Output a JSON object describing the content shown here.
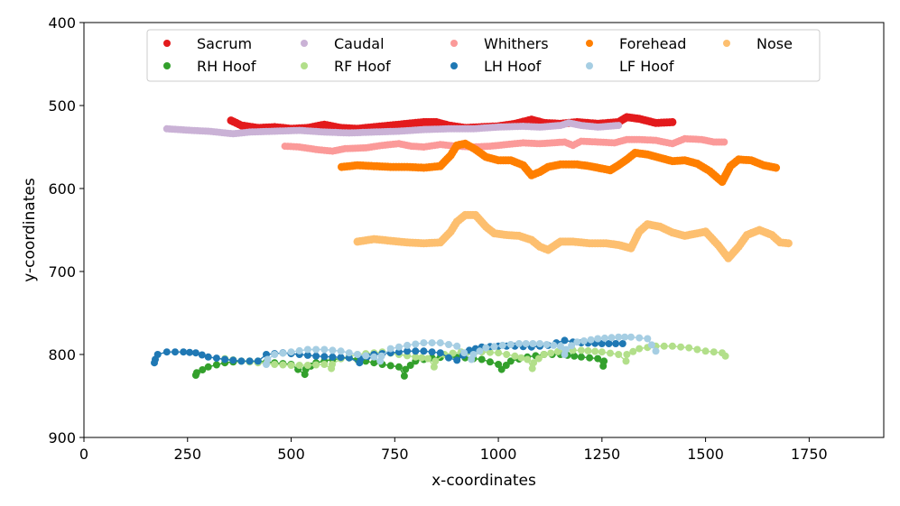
{
  "chart_data": {
    "type": "scatter",
    "title": "",
    "xlabel": "x-coordinates",
    "ylabel": "y-coordinates",
    "xlim": [
      0,
      1930
    ],
    "ylim": [
      900,
      400
    ],
    "y_inverted": true,
    "grid": false,
    "legend_position": "top-center",
    "xticks": [
      0,
      250,
      500,
      750,
      1000,
      1250,
      1500,
      1750
    ],
    "yticks": [
      400,
      500,
      600,
      700,
      800,
      900
    ],
    "series": [
      {
        "name": "Sacrum",
        "color": "#e31a1c",
        "marker_size": 4.5,
        "points": [
          [
            355,
            518
          ],
          [
            380,
            524
          ],
          [
            420,
            527
          ],
          [
            460,
            526
          ],
          [
            500,
            528
          ],
          [
            540,
            527
          ],
          [
            580,
            523
          ],
          [
            620,
            527
          ],
          [
            660,
            528
          ],
          [
            700,
            526
          ],
          [
            740,
            524
          ],
          [
            780,
            522
          ],
          [
            820,
            520
          ],
          [
            850,
            520
          ],
          [
            880,
            524
          ],
          [
            920,
            527
          ],
          [
            960,
            526
          ],
          [
            1000,
            525
          ],
          [
            1040,
            522
          ],
          [
            1080,
            517
          ],
          [
            1110,
            521
          ],
          [
            1150,
            522
          ],
          [
            1190,
            520
          ],
          [
            1240,
            522
          ],
          [
            1290,
            520
          ],
          [
            1310,
            514
          ],
          [
            1340,
            516
          ],
          [
            1380,
            521
          ],
          [
            1420,
            520
          ]
        ]
      },
      {
        "name": "Caudal",
        "color": "#cab2d6",
        "marker_size": 4,
        "points": [
          [
            200,
            528
          ],
          [
            260,
            530
          ],
          [
            300,
            531
          ],
          [
            360,
            534
          ],
          [
            400,
            532
          ],
          [
            460,
            531
          ],
          [
            520,
            530
          ],
          [
            580,
            532
          ],
          [
            640,
            533
          ],
          [
            700,
            532
          ],
          [
            760,
            531
          ],
          [
            820,
            529
          ],
          [
            880,
            528
          ],
          [
            940,
            528
          ],
          [
            1000,
            526
          ],
          [
            1060,
            525
          ],
          [
            1100,
            526
          ],
          [
            1150,
            524
          ],
          [
            1170,
            521
          ],
          [
            1200,
            524
          ],
          [
            1240,
            526
          ],
          [
            1290,
            524
          ]
        ]
      },
      {
        "name": "Whithers",
        "color": "#fb9a99",
        "marker_size": 4,
        "points": [
          [
            485,
            549
          ],
          [
            520,
            550
          ],
          [
            560,
            553
          ],
          [
            600,
            555
          ],
          [
            630,
            552
          ],
          [
            680,
            551
          ],
          [
            720,
            548
          ],
          [
            760,
            546
          ],
          [
            790,
            549
          ],
          [
            820,
            550
          ],
          [
            860,
            547
          ],
          [
            900,
            549
          ],
          [
            940,
            550
          ],
          [
            980,
            549
          ],
          [
            1020,
            547
          ],
          [
            1060,
            545
          ],
          [
            1100,
            546
          ],
          [
            1130,
            545
          ],
          [
            1160,
            544
          ],
          [
            1180,
            548
          ],
          [
            1200,
            543
          ],
          [
            1240,
            544
          ],
          [
            1280,
            545
          ],
          [
            1310,
            541
          ],
          [
            1340,
            541
          ],
          [
            1380,
            542
          ],
          [
            1420,
            546
          ],
          [
            1450,
            540
          ],
          [
            1490,
            541
          ],
          [
            1520,
            544
          ],
          [
            1545,
            544
          ]
        ]
      },
      {
        "name": "Forehead",
        "color": "#ff7f00",
        "marker_size": 4.5,
        "points": [
          [
            622,
            574
          ],
          [
            660,
            572
          ],
          [
            700,
            573
          ],
          [
            740,
            574
          ],
          [
            780,
            574
          ],
          [
            820,
            575
          ],
          [
            860,
            573
          ],
          [
            885,
            560
          ],
          [
            900,
            548
          ],
          [
            920,
            546
          ],
          [
            945,
            553
          ],
          [
            970,
            562
          ],
          [
            1000,
            566
          ],
          [
            1030,
            566
          ],
          [
            1060,
            572
          ],
          [
            1080,
            584
          ],
          [
            1100,
            580
          ],
          [
            1120,
            574
          ],
          [
            1150,
            571
          ],
          [
            1190,
            571
          ],
          [
            1220,
            573
          ],
          [
            1250,
            576
          ],
          [
            1270,
            578
          ],
          [
            1290,
            572
          ],
          [
            1310,
            565
          ],
          [
            1330,
            557
          ],
          [
            1360,
            559
          ],
          [
            1390,
            563
          ],
          [
            1420,
            567
          ],
          [
            1450,
            566
          ],
          [
            1480,
            570
          ],
          [
            1510,
            579
          ],
          [
            1540,
            592
          ],
          [
            1560,
            573
          ],
          [
            1580,
            565
          ],
          [
            1610,
            566
          ],
          [
            1640,
            572
          ],
          [
            1670,
            575
          ]
        ]
      },
      {
        "name": "Nose",
        "color": "#fdbf6f",
        "marker_size": 4.5,
        "points": [
          [
            660,
            664
          ],
          [
            700,
            661
          ],
          [
            740,
            663
          ],
          [
            780,
            665
          ],
          [
            820,
            666
          ],
          [
            860,
            665
          ],
          [
            885,
            652
          ],
          [
            900,
            640
          ],
          [
            920,
            632
          ],
          [
            945,
            632
          ],
          [
            970,
            646
          ],
          [
            990,
            654
          ],
          [
            1020,
            656
          ],
          [
            1050,
            657
          ],
          [
            1080,
            662
          ],
          [
            1100,
            670
          ],
          [
            1120,
            674
          ],
          [
            1150,
            664
          ],
          [
            1180,
            664
          ],
          [
            1220,
            666
          ],
          [
            1260,
            666
          ],
          [
            1290,
            668
          ],
          [
            1320,
            672
          ],
          [
            1340,
            652
          ],
          [
            1360,
            643
          ],
          [
            1390,
            646
          ],
          [
            1420,
            653
          ],
          [
            1450,
            657
          ],
          [
            1480,
            654
          ],
          [
            1500,
            652
          ],
          [
            1530,
            668
          ],
          [
            1555,
            684
          ],
          [
            1580,
            670
          ],
          [
            1600,
            656
          ],
          [
            1630,
            650
          ],
          [
            1660,
            656
          ],
          [
            1680,
            665
          ],
          [
            1700,
            666
          ]
        ]
      },
      {
        "name": "RH Hoof",
        "color": "#33a02c",
        "marker_size": 4,
        "points": [
          [
            270,
            825
          ],
          [
            272,
            822
          ],
          [
            300,
            815
          ],
          [
            340,
            810
          ],
          [
            380,
            808
          ],
          [
            420,
            808
          ],
          [
            460,
            810
          ],
          [
            500,
            812
          ],
          [
            533,
            824
          ],
          [
            535,
            818
          ],
          [
            560,
            810
          ],
          [
            600,
            806
          ],
          [
            640,
            804
          ],
          [
            680,
            808
          ],
          [
            720,
            812
          ],
          [
            760,
            815
          ],
          [
            773,
            826
          ],
          [
            776,
            818
          ],
          [
            800,
            808
          ],
          [
            840,
            804
          ],
          [
            880,
            803
          ],
          [
            920,
            804
          ],
          [
            960,
            806
          ],
          [
            1000,
            812
          ],
          [
            1008,
            818
          ],
          [
            1030,
            808
          ],
          [
            1070,
            803
          ],
          [
            1110,
            800
          ],
          [
            1150,
            800
          ],
          [
            1200,
            803
          ],
          [
            1240,
            805
          ],
          [
            1253,
            814
          ],
          [
            1255,
            808
          ]
        ]
      },
      {
        "name": "RF Hoof",
        "color": "#b2df8a",
        "marker_size": 4,
        "points": [
          [
            340,
            805
          ],
          [
            380,
            808
          ],
          [
            420,
            810
          ],
          [
            460,
            812
          ],
          [
            500,
            813
          ],
          [
            540,
            813
          ],
          [
            580,
            812
          ],
          [
            597,
            817
          ],
          [
            599,
            812
          ],
          [
            620,
            805
          ],
          [
            660,
            800
          ],
          [
            700,
            798
          ],
          [
            720,
            797
          ],
          [
            760,
            800
          ],
          [
            800,
            803
          ],
          [
            830,
            805
          ],
          [
            845,
            815
          ],
          [
            848,
            808
          ],
          [
            870,
            800
          ],
          [
            910,
            797
          ],
          [
            960,
            797
          ],
          [
            1000,
            798
          ],
          [
            1040,
            802
          ],
          [
            1070,
            806
          ],
          [
            1082,
            817
          ],
          [
            1085,
            810
          ],
          [
            1110,
            800
          ],
          [
            1160,
            795
          ],
          [
            1200,
            795
          ],
          [
            1250,
            797
          ],
          [
            1290,
            800
          ],
          [
            1308,
            808
          ],
          [
            1310,
            800
          ],
          [
            1340,
            793
          ],
          [
            1380,
            790
          ],
          [
            1420,
            790
          ],
          [
            1460,
            792
          ],
          [
            1500,
            796
          ],
          [
            1540,
            798
          ],
          [
            1548,
            802
          ]
        ]
      },
      {
        "name": "LH Hoof",
        "color": "#1f78b4",
        "marker_size": 4,
        "points": [
          [
            170,
            810
          ],
          [
            172,
            806
          ],
          [
            178,
            800
          ],
          [
            200,
            797
          ],
          [
            240,
            797
          ],
          [
            270,
            798
          ],
          [
            300,
            803
          ],
          [
            340,
            806
          ],
          [
            380,
            808
          ],
          [
            420,
            808
          ],
          [
            440,
            800
          ],
          [
            480,
            798
          ],
          [
            520,
            800
          ],
          [
            560,
            802
          ],
          [
            600,
            803
          ],
          [
            640,
            804
          ],
          [
            665,
            810
          ],
          [
            668,
            805
          ],
          [
            700,
            800
          ],
          [
            740,
            798
          ],
          [
            780,
            796
          ],
          [
            820,
            796
          ],
          [
            860,
            798
          ],
          [
            880,
            804
          ],
          [
            900,
            807
          ],
          [
            930,
            795
          ],
          [
            960,
            791
          ],
          [
            1000,
            790
          ],
          [
            1040,
            790
          ],
          [
            1080,
            791
          ],
          [
            1120,
            789
          ],
          [
            1140,
            786
          ],
          [
            1160,
            783
          ],
          [
            1180,
            785
          ],
          [
            1200,
            786
          ],
          [
            1250,
            787
          ],
          [
            1300,
            787
          ]
        ]
      },
      {
        "name": "LF Hoof",
        "color": "#a6cee3",
        "marker_size": 4,
        "points": [
          [
            440,
            812
          ],
          [
            443,
            806
          ],
          [
            460,
            800
          ],
          [
            500,
            797
          ],
          [
            540,
            794
          ],
          [
            580,
            794
          ],
          [
            620,
            796
          ],
          [
            660,
            800
          ],
          [
            700,
            803
          ],
          [
            715,
            808
          ],
          [
            718,
            802
          ],
          [
            740,
            793
          ],
          [
            780,
            789
          ],
          [
            820,
            786
          ],
          [
            860,
            786
          ],
          [
            900,
            790
          ],
          [
            935,
            806
          ],
          [
            940,
            800
          ],
          [
            970,
            792
          ],
          [
            1010,
            789
          ],
          [
            1050,
            787
          ],
          [
            1100,
            787
          ],
          [
            1150,
            790
          ],
          [
            1160,
            800
          ],
          [
            1163,
            794
          ],
          [
            1190,
            785
          ],
          [
            1240,
            781
          ],
          [
            1290,
            779
          ],
          [
            1320,
            779
          ],
          [
            1360,
            781
          ],
          [
            1380,
            796
          ]
        ]
      }
    ]
  }
}
